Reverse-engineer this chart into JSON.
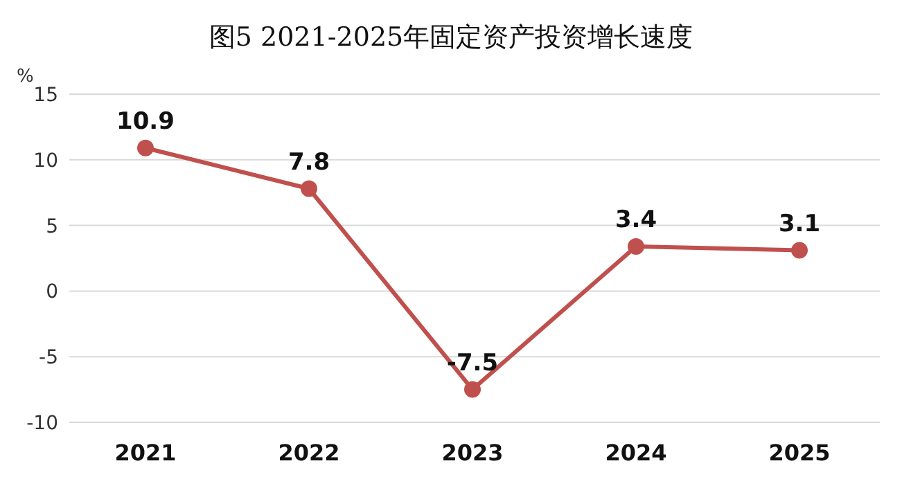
{
  "chart_data": {
    "type": "line",
    "title": "图5 2021-2025年固定资产投资增长速度",
    "ylabel": "%",
    "categories": [
      "2021",
      "2022",
      "2023",
      "2024",
      "2025"
    ],
    "series": [
      {
        "color": "#c0504d",
        "values": [
          10.9,
          7.8,
          -7.5,
          3.4,
          3.1
        ]
      }
    ],
    "ylim": [
      -10,
      15
    ],
    "yticks": [
      -10,
      -5,
      0,
      5,
      10,
      15
    ],
    "grid": "y",
    "marker": "circle",
    "line_style": "solid",
    "data_labels": true
  }
}
